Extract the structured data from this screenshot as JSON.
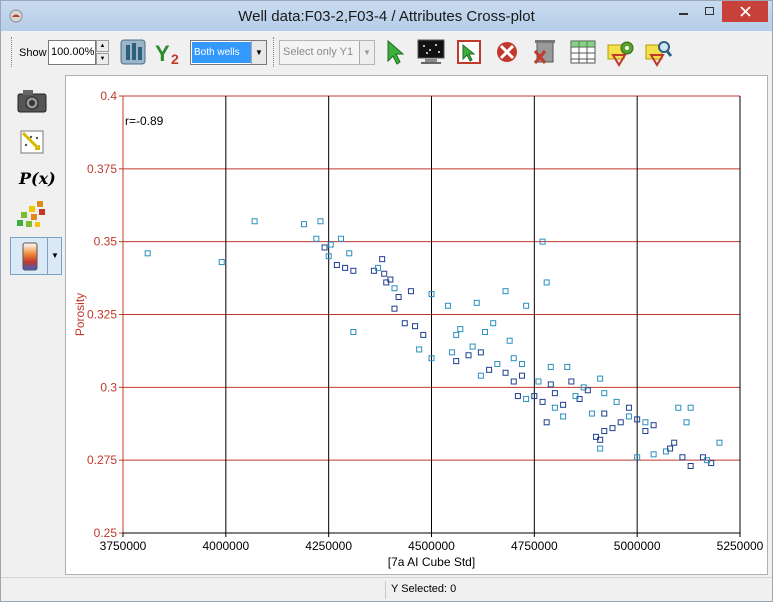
{
  "window": {
    "title": "Well data:F03-2,F03-4 / Attributes Cross-plot"
  },
  "toolbar": {
    "show_label": "Show",
    "zoom_value": "100.00%",
    "well_selection": "Both wells",
    "y1_selection": "Select only Y1"
  },
  "status": {
    "y_selected": "Y Selected: 0"
  },
  "side": {
    "px_label": "P(x)"
  },
  "colors": {
    "axis_red": "#c0392b",
    "grid_red": "#c0392b",
    "point_dark": "#1f3f8f",
    "point_light": "#2a8fbf"
  },
  "chart_data": {
    "type": "scatter",
    "xlabel": "[7a AI Cube Std]",
    "ylabel": "Porosity",
    "annotation": "r=-0.89",
    "xlim": [
      3750000,
      5250000
    ],
    "ylim": [
      0.25,
      0.4
    ],
    "xticks": [
      3750000,
      4000000,
      4250000,
      4500000,
      4750000,
      5000000,
      5250000
    ],
    "yticks": [
      0.25,
      0.275,
      0.3,
      0.325,
      0.35,
      0.375,
      0.4
    ],
    "x_gridlines": "black vertical",
    "y_gridlines": "red horizontal",
    "series": [
      {
        "color": "#1f3f8f",
        "points": [
          [
            4240000,
            0.348
          ],
          [
            4270000,
            0.342
          ],
          [
            4290000,
            0.341
          ],
          [
            4310000,
            0.34
          ],
          [
            4360000,
            0.34
          ],
          [
            4380000,
            0.344
          ],
          [
            4385000,
            0.339
          ],
          [
            4390000,
            0.336
          ],
          [
            4400000,
            0.337
          ],
          [
            4410000,
            0.327
          ],
          [
            4420000,
            0.331
          ],
          [
            4435000,
            0.322
          ],
          [
            4450000,
            0.333
          ],
          [
            4460000,
            0.321
          ],
          [
            4480000,
            0.318
          ],
          [
            4560000,
            0.309
          ],
          [
            4590000,
            0.311
          ],
          [
            4620000,
            0.312
          ],
          [
            4640000,
            0.306
          ],
          [
            4680000,
            0.305
          ],
          [
            4700000,
            0.302
          ],
          [
            4720000,
            0.304
          ],
          [
            4750000,
            0.297
          ],
          [
            4770000,
            0.295
          ],
          [
            4790000,
            0.301
          ],
          [
            4800000,
            0.298
          ],
          [
            4820000,
            0.294
          ],
          [
            4840000,
            0.302
          ],
          [
            4860000,
            0.296
          ],
          [
            4880000,
            0.299
          ],
          [
            4900000,
            0.283
          ],
          [
            4910000,
            0.282
          ],
          [
            4920000,
            0.291
          ],
          [
            4940000,
            0.286
          ],
          [
            4960000,
            0.288
          ],
          [
            5000000,
            0.289
          ],
          [
            5020000,
            0.285
          ],
          [
            5040000,
            0.287
          ],
          [
            5080000,
            0.279
          ],
          [
            5110000,
            0.276
          ],
          [
            5130000,
            0.273
          ],
          [
            5160000,
            0.276
          ],
          [
            5180000,
            0.274
          ],
          [
            5090000,
            0.281
          ],
          [
            4920000,
            0.285
          ],
          [
            4980000,
            0.293
          ],
          [
            4710000,
            0.297
          ],
          [
            4780000,
            0.288
          ]
        ]
      },
      {
        "color": "#2a8fbf",
        "points": [
          [
            3810000,
            0.346
          ],
          [
            3990000,
            0.343
          ],
          [
            4070000,
            0.357
          ],
          [
            4190000,
            0.356
          ],
          [
            4220000,
            0.351
          ],
          [
            4230000,
            0.357
          ],
          [
            4250000,
            0.345
          ],
          [
            4255000,
            0.349
          ],
          [
            4280000,
            0.351
          ],
          [
            4300000,
            0.346
          ],
          [
            4310000,
            0.319
          ],
          [
            4370000,
            0.341
          ],
          [
            4410000,
            0.334
          ],
          [
            4470000,
            0.313
          ],
          [
            4500000,
            0.332
          ],
          [
            4500000,
            0.31
          ],
          [
            4540000,
            0.328
          ],
          [
            4560000,
            0.318
          ],
          [
            4570000,
            0.32
          ],
          [
            4600000,
            0.314
          ],
          [
            4610000,
            0.329
          ],
          [
            4630000,
            0.319
          ],
          [
            4650000,
            0.322
          ],
          [
            4660000,
            0.308
          ],
          [
            4680000,
            0.333
          ],
          [
            4690000,
            0.316
          ],
          [
            4700000,
            0.31
          ],
          [
            4720000,
            0.308
          ],
          [
            4730000,
            0.328
          ],
          [
            4760000,
            0.302
          ],
          [
            4770000,
            0.35
          ],
          [
            4780000,
            0.336
          ],
          [
            4790000,
            0.307
          ],
          [
            4800000,
            0.293
          ],
          [
            4830000,
            0.307
          ],
          [
            4850000,
            0.297
          ],
          [
            4870000,
            0.3
          ],
          [
            4890000,
            0.291
          ],
          [
            4910000,
            0.303
          ],
          [
            4910000,
            0.279
          ],
          [
            4920000,
            0.298
          ],
          [
            4950000,
            0.295
          ],
          [
            4980000,
            0.29
          ],
          [
            5000000,
            0.276
          ],
          [
            5020000,
            0.288
          ],
          [
            5040000,
            0.277
          ],
          [
            5070000,
            0.278
          ],
          [
            5100000,
            0.293
          ],
          [
            5120000,
            0.288
          ],
          [
            5130000,
            0.293
          ],
          [
            5170000,
            0.275
          ],
          [
            5200000,
            0.281
          ],
          [
            4550000,
            0.312
          ],
          [
            4620000,
            0.304
          ],
          [
            4730000,
            0.296
          ],
          [
            4820000,
            0.29
          ]
        ]
      }
    ]
  }
}
